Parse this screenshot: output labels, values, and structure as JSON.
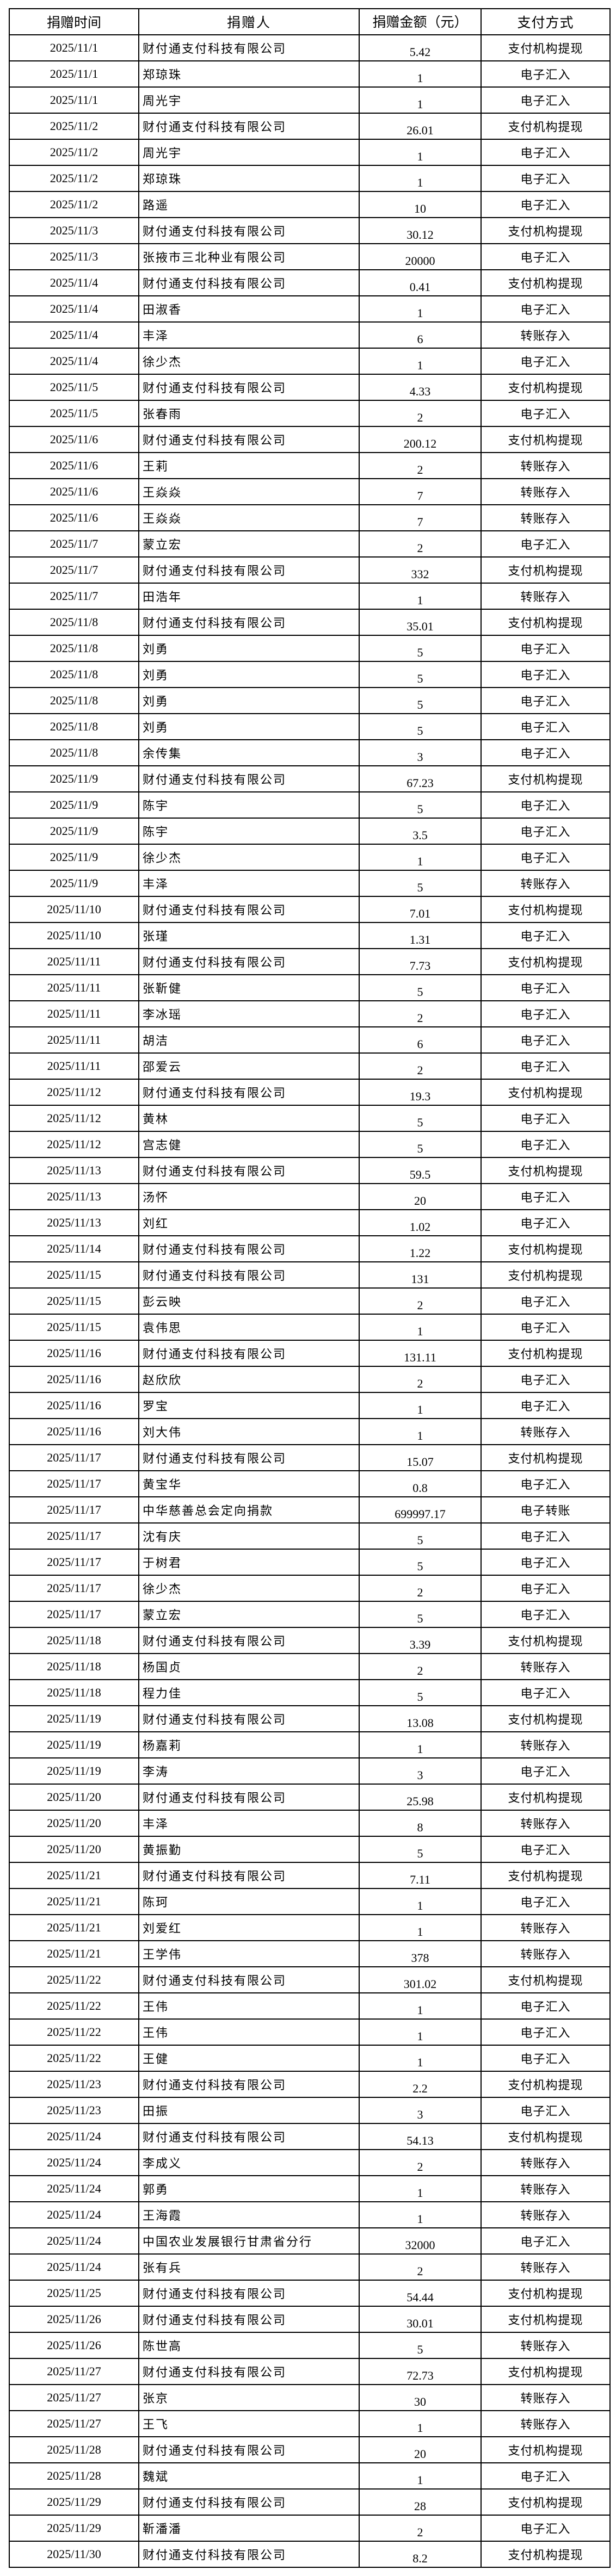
{
  "table": {
    "headers": [
      "捐赠时间",
      "捐赠人",
      "捐赠金额（元）",
      "支付方式"
    ],
    "rows": [
      [
        "2025/11/1",
        "财付通支付科技有限公司",
        "5.42",
        "支付机构提现"
      ],
      [
        "2025/11/1",
        "郑琼珠",
        "1",
        "电子汇入"
      ],
      [
        "2025/11/1",
        "周光宇",
        "1",
        "电子汇入"
      ],
      [
        "2025/11/2",
        "财付通支付科技有限公司",
        "26.01",
        "支付机构提现"
      ],
      [
        "2025/11/2",
        "周光宇",
        "1",
        "电子汇入"
      ],
      [
        "2025/11/2",
        "郑琼珠",
        "1",
        "电子汇入"
      ],
      [
        "2025/11/2",
        "路遥",
        "10",
        "电子汇入"
      ],
      [
        "2025/11/3",
        "财付通支付科技有限公司",
        "30.12",
        "支付机构提现"
      ],
      [
        "2025/11/3",
        "张掖市三北种业有限公司",
        "20000",
        "电子汇入"
      ],
      [
        "2025/11/4",
        "财付通支付科技有限公司",
        "0.41",
        "支付机构提现"
      ],
      [
        "2025/11/4",
        "田淑香",
        "1",
        "电子汇入"
      ],
      [
        "2025/11/4",
        "丰泽",
        "6",
        "转账存入"
      ],
      [
        "2025/11/4",
        "徐少杰",
        "1",
        "电子汇入"
      ],
      [
        "2025/11/5",
        "财付通支付科技有限公司",
        "4.33",
        "支付机构提现"
      ],
      [
        "2025/11/5",
        "张春雨",
        "2",
        "电子汇入"
      ],
      [
        "2025/11/6",
        "财付通支付科技有限公司",
        "200.12",
        "支付机构提现"
      ],
      [
        "2025/11/6",
        "王莉",
        "2",
        "转账存入"
      ],
      [
        "2025/11/6",
        "王焱焱",
        "7",
        "转账存入"
      ],
      [
        "2025/11/6",
        "王焱焱",
        "7",
        "转账存入"
      ],
      [
        "2025/11/7",
        "蒙立宏",
        "2",
        "电子汇入"
      ],
      [
        "2025/11/7",
        "财付通支付科技有限公司",
        "332",
        "支付机构提现"
      ],
      [
        "2025/11/7",
        "田浩年",
        "1",
        "转账存入"
      ],
      [
        "2025/11/8",
        "财付通支付科技有限公司",
        "35.01",
        "支付机构提现"
      ],
      [
        "2025/11/8",
        "刘勇",
        "5",
        "电子汇入"
      ],
      [
        "2025/11/8",
        "刘勇",
        "5",
        "电子汇入"
      ],
      [
        "2025/11/8",
        "刘勇",
        "5",
        "电子汇入"
      ],
      [
        "2025/11/8",
        "刘勇",
        "5",
        "电子汇入"
      ],
      [
        "2025/11/8",
        "余传集",
        "3",
        "电子汇入"
      ],
      [
        "2025/11/9",
        "财付通支付科技有限公司",
        "67.23",
        "支付机构提现"
      ],
      [
        "2025/11/9",
        "陈宇",
        "5",
        "电子汇入"
      ],
      [
        "2025/11/9",
        "陈宇",
        "3.5",
        "电子汇入"
      ],
      [
        "2025/11/9",
        "徐少杰",
        "1",
        "电子汇入"
      ],
      [
        "2025/11/9",
        "丰泽",
        "5",
        "转账存入"
      ],
      [
        "2025/11/10",
        "财付通支付科技有限公司",
        "7.01",
        "支付机构提现"
      ],
      [
        "2025/11/10",
        "张瑾",
        "1.31",
        "电子汇入"
      ],
      [
        "2025/11/11",
        "财付通支付科技有限公司",
        "7.73",
        "支付机构提现"
      ],
      [
        "2025/11/11",
        "张靳健",
        "5",
        "电子汇入"
      ],
      [
        "2025/11/11",
        "李冰瑶",
        "2",
        "电子汇入"
      ],
      [
        "2025/11/11",
        "胡洁",
        "6",
        "电子汇入"
      ],
      [
        "2025/11/11",
        "邵爱云",
        "2",
        "电子汇入"
      ],
      [
        "2025/11/12",
        "财付通支付科技有限公司",
        "19.3",
        "支付机构提现"
      ],
      [
        "2025/11/12",
        "黄林",
        "5",
        "电子汇入"
      ],
      [
        "2025/11/12",
        "宫志健",
        "5",
        "电子汇入"
      ],
      [
        "2025/11/13",
        "财付通支付科技有限公司",
        "59.5",
        "支付机构提现"
      ],
      [
        "2025/11/13",
        "汤怀",
        "20",
        "电子汇入"
      ],
      [
        "2025/11/13",
        "刘红",
        "1.02",
        "电子汇入"
      ],
      [
        "2025/11/14",
        "财付通支付科技有限公司",
        "1.22",
        "支付机构提现"
      ],
      [
        "2025/11/15",
        "财付通支付科技有限公司",
        "131",
        "支付机构提现"
      ],
      [
        "2025/11/15",
        "彭云映",
        "2",
        "电子汇入"
      ],
      [
        "2025/11/15",
        "袁伟思",
        "1",
        "电子汇入"
      ],
      [
        "2025/11/16",
        "财付通支付科技有限公司",
        "131.11",
        "支付机构提现"
      ],
      [
        "2025/11/16",
        "赵欣欣",
        "2",
        "电子汇入"
      ],
      [
        "2025/11/16",
        "罗宝",
        "1",
        "电子汇入"
      ],
      [
        "2025/11/16",
        "刘大伟",
        "1",
        "转账存入"
      ],
      [
        "2025/11/17",
        "财付通支付科技有限公司",
        "15.07",
        "支付机构提现"
      ],
      [
        "2025/11/17",
        "黄宝华",
        "0.8",
        "电子汇入"
      ],
      [
        "2025/11/17",
        "中华慈善总会定向捐款",
        "699997.17",
        "电子转账"
      ],
      [
        "2025/11/17",
        "沈有庆",
        "5",
        "电子汇入"
      ],
      [
        "2025/11/17",
        "于树君",
        "5",
        "电子汇入"
      ],
      [
        "2025/11/17",
        "徐少杰",
        "2",
        "电子汇入"
      ],
      [
        "2025/11/17",
        "蒙立宏",
        "5",
        "电子汇入"
      ],
      [
        "2025/11/18",
        "财付通支付科技有限公司",
        "3.39",
        "支付机构提现"
      ],
      [
        "2025/11/18",
        "杨国贞",
        "2",
        "转账存入"
      ],
      [
        "2025/11/18",
        "程力佳",
        "5",
        "电子汇入"
      ],
      [
        "2025/11/19",
        "财付通支付科技有限公司",
        "13.08",
        "支付机构提现"
      ],
      [
        "2025/11/19",
        "杨嘉莉",
        "1",
        "转账存入"
      ],
      [
        "2025/11/19",
        "李涛",
        "3",
        "电子汇入"
      ],
      [
        "2025/11/20",
        "财付通支付科技有限公司",
        "25.98",
        "支付机构提现"
      ],
      [
        "2025/11/20",
        "丰泽",
        "8",
        "转账存入"
      ],
      [
        "2025/11/20",
        "黄振勤",
        "5",
        "电子汇入"
      ],
      [
        "2025/11/21",
        "财付通支付科技有限公司",
        "7.11",
        "支付机构提现"
      ],
      [
        "2025/11/21",
        "陈珂",
        "1",
        "电子汇入"
      ],
      [
        "2025/11/21",
        "刘爱红",
        "1",
        "转账存入"
      ],
      [
        "2025/11/21",
        "王学伟",
        "378",
        "转账存入"
      ],
      [
        "2025/11/22",
        "财付通支付科技有限公司",
        "301.02",
        "支付机构提现"
      ],
      [
        "2025/11/22",
        "王伟",
        "1",
        "电子汇入"
      ],
      [
        "2025/11/22",
        "王伟",
        "1",
        "电子汇入"
      ],
      [
        "2025/11/22",
        "王健",
        "1",
        "电子汇入"
      ],
      [
        "2025/11/23",
        "财付通支付科技有限公司",
        "2.2",
        "支付机构提现"
      ],
      [
        "2025/11/23",
        "田振",
        "3",
        "电子汇入"
      ],
      [
        "2025/11/24",
        "财付通支付科技有限公司",
        "54.13",
        "支付机构提现"
      ],
      [
        "2025/11/24",
        "李成义",
        "2",
        "转账存入"
      ],
      [
        "2025/11/24",
        "郭勇",
        "1",
        "转账存入"
      ],
      [
        "2025/11/24",
        "王海霞",
        "1",
        "转账存入"
      ],
      [
        "2025/11/24",
        "中国农业发展银行甘肃省分行",
        "32000",
        "电子汇入"
      ],
      [
        "2025/11/24",
        "张有兵",
        "2",
        "转账存入"
      ],
      [
        "2025/11/25",
        "财付通支付科技有限公司",
        "54.44",
        "支付机构提现"
      ],
      [
        "2025/11/26",
        "财付通支付科技有限公司",
        "30.01",
        "支付机构提现"
      ],
      [
        "2025/11/26",
        "陈世高",
        "5",
        "转账存入"
      ],
      [
        "2025/11/27",
        "财付通支付科技有限公司",
        "72.73",
        "支付机构提现"
      ],
      [
        "2025/11/27",
        "张京",
        "30",
        "转账存入"
      ],
      [
        "2025/11/27",
        "王飞",
        "1",
        "转账存入"
      ],
      [
        "2025/11/28",
        "财付通支付科技有限公司",
        "20",
        "支付机构提现"
      ],
      [
        "2025/11/28",
        "魏斌",
        "1",
        "电子汇入"
      ],
      [
        "2025/11/29",
        "财付通支付科技有限公司",
        "28",
        "支付机构提现"
      ],
      [
        "2025/11/29",
        "靳潘潘",
        "2",
        "电子汇入"
      ],
      [
        "2025/11/30",
        "财付通支付科技有限公司",
        "8.2",
        "支付机构提现"
      ]
    ]
  }
}
